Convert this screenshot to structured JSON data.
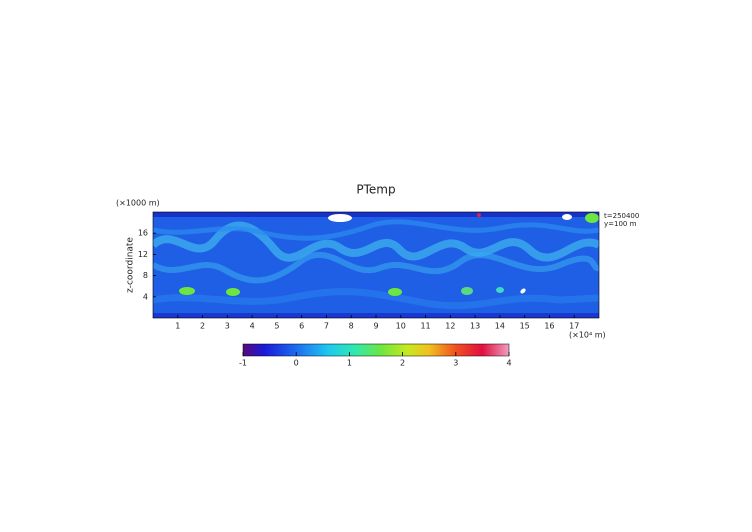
{
  "chart_data": {
    "type": "heatmap",
    "title": "PTemp",
    "x_unit_label": "(×10⁴ m)",
    "y_unit_label": "(×1000 m)",
    "ylabel": "z-coordinate",
    "annotations": [
      "t=250400",
      "y=100 m"
    ],
    "xlim": [
      0,
      18
    ],
    "xticks": [
      1,
      2,
      3,
      4,
      5,
      6,
      7,
      8,
      9,
      10,
      11,
      12,
      13,
      14,
      15,
      16,
      17
    ],
    "ylim": [
      0,
      20
    ],
    "yticks": [
      4,
      8,
      12,
      16
    ],
    "colorbar": {
      "lim": [
        -1,
        4
      ],
      "ticks": [
        -1,
        0,
        1,
        2,
        3,
        4
      ]
    }
  }
}
